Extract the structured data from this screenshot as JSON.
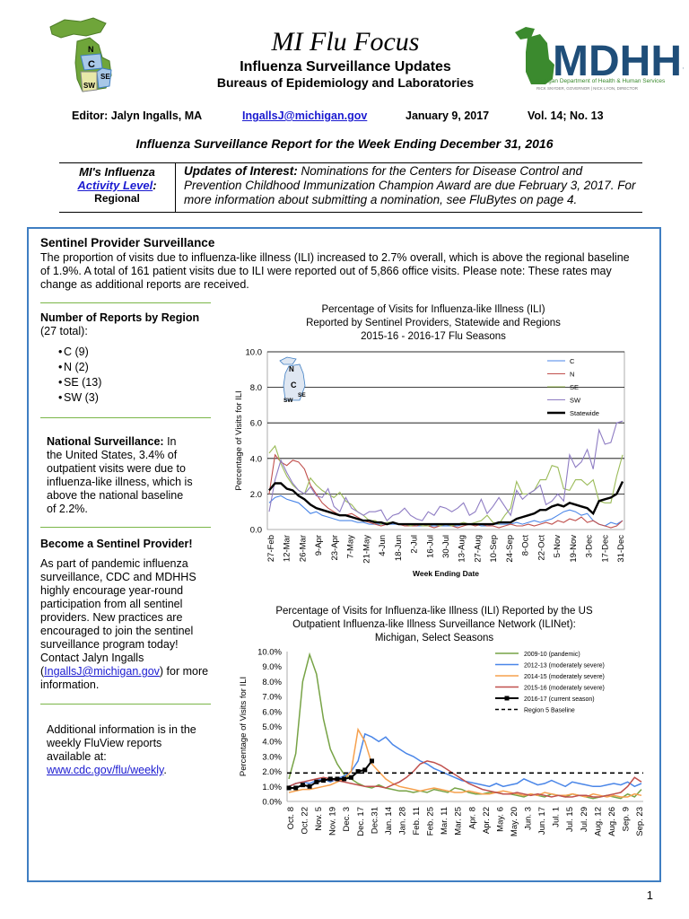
{
  "header": {
    "title": "MI Flu Focus",
    "subtitle": "Influenza Surveillance Updates",
    "bureau": "Bureaus of Epidemiology and Laboratories",
    "map_labels": [
      "N",
      "C",
      "SE",
      "SW"
    ],
    "logo": {
      "text": "MDHHS",
      "tagline": "Michigan Department of Health & Human Services",
      "governor_line": "RICK SNYDER, GOVERNOR | NICK LYON, DIRECTOR"
    }
  },
  "editor_row": {
    "editor": "Editor: Jalyn Ingalls, MA",
    "email": "IngallsJ@michigan.gov",
    "date": "January 9, 2017",
    "volume": "Vol. 14; No. 13"
  },
  "report_title": "Influenza Surveillance Report for the Week Ending December 31, 2016",
  "activity": {
    "label1": "MI's Influenza",
    "label2_link": "Activity Level",
    "label2_suffix": ":",
    "level": "Regional",
    "updates_label": "Updates of Interest:",
    "updates_text": " Nominations for the Centers for Disease Control and Prevention Childhood Immunization Champion Award are due February 3, 2017. For more information about submitting a nomination, see FluBytes on page 4."
  },
  "sentinel": {
    "title": "Sentinel Provider Surveillance",
    "paragraph": "The proportion of visits due to influenza-like illness (ILI) increased to 2.7% overall, which is above the regional baseline of 1.9%. A total of 161 patient visits due to ILI were reported out of 5,866 office visits. Please note: These rates may change as additional reports are received."
  },
  "reports_by_region": {
    "title": "Number of Reports by Region",
    "total": "(27 total):",
    "items": [
      "C (9)",
      "N (2)",
      "SE (13)",
      "SW (3)"
    ]
  },
  "national": {
    "label": "National Surveillance:",
    "text": " In the United States, 3.4% of outpatient visits were due to influenza-like illness, which is above the national baseline of 2.2%."
  },
  "become": {
    "title": "Become a Sentinel Provider!",
    "text_before": "As part of pandemic influenza surveillance, CDC and MDHHS highly encourage year-round participation from all sentinel providers. New practices are encouraged to join the sentinel surveillance program today! Contact Jalyn Ingalls (",
    "email": "IngallsJ@michigan.gov",
    "text_after": ") for more information."
  },
  "additional": {
    "text": "Additional information is in the weekly FluView reports available at:",
    "link": "www.cdc.gov/flu/weekly",
    "suffix": "."
  },
  "page_number": "1",
  "chart_data": [
    {
      "type": "line",
      "title": "Percentage of Visits for Influenza-like Illness (ILI) Reported by Sentinel Providers, Statewide and Regions 2015-16 - 2016-17 Flu Seasons",
      "title_lines": [
        "Percentage of Visits for Influenza-like Illness (ILI)",
        "Reported by Sentinel Providers, Statewide and Regions",
        "2015-16 - 2016-17 Flu Seasons"
      ],
      "xlabel": "Week Ending Date",
      "ylabel": "Percentage of Visits for ILI",
      "ylim": [
        0,
        10
      ],
      "y_ticks": [
        "0.0",
        "2.0",
        "4.0",
        "6.0",
        "8.0",
        "10.0"
      ],
      "x_tick_labels": [
        "27-Feb",
        "12-Mar",
        "26-Mar",
        "9-Apr",
        "23-Apr",
        "7-May",
        "21-May",
        "4-Jun",
        "18-Jun",
        "2-Jul",
        "16-Jul",
        "30-Jul",
        "13-Aug",
        "27-Aug",
        "10-Sep",
        "24-Sep",
        "8-Oct",
        "22-Oct",
        "5-Nov",
        "19-Nov",
        "3-Dec",
        "17-Dec",
        "31-Dec"
      ],
      "legend_position": "top-right",
      "series": [
        {
          "name": "C",
          "color": "#4a86e8",
          "values": [
            1.5,
            1.8,
            1.9,
            1.7,
            1.6,
            1.5,
            1.2,
            0.9,
            1.0,
            0.8,
            0.7,
            0.6,
            0.5,
            0.5,
            0.5,
            0.4,
            0.4,
            0.3,
            0.3,
            0.3,
            0.3,
            0.3,
            0.3,
            0.3,
            0.3,
            0.2,
            0.2,
            0.2,
            0.2,
            0.2,
            0.2,
            0.2,
            0.2,
            0.3,
            0.3,
            0.3,
            0.2,
            0.2,
            0.3,
            0.3,
            0.3,
            0.3,
            0.4,
            0.3,
            0.4,
            0.5,
            0.4,
            0.5,
            0.6,
            0.8,
            1.0,
            1.1,
            1.0,
            0.8,
            0.9,
            0.5,
            0.3,
            0.2,
            0.4,
            0.3,
            0.5
          ]
        },
        {
          "name": "N",
          "color": "#c0504d",
          "values": [
            2.0,
            4.2,
            3.8,
            3.6,
            3.9,
            3.8,
            3.4,
            2.5,
            2.0,
            1.5,
            1.2,
            1.0,
            0.8,
            0.8,
            0.9,
            0.7,
            0.5,
            0.4,
            0.3,
            0.2,
            0.3,
            0.4,
            0.3,
            0.2,
            0.2,
            0.2,
            0.3,
            0.2,
            0.1,
            0.2,
            0.3,
            0.2,
            0.1,
            0.2,
            0.3,
            0.2,
            0.3,
            0.2,
            0.2,
            0.1,
            0.2,
            0.3,
            0.2,
            0.2,
            0.3,
            0.2,
            0.3,
            0.4,
            0.3,
            0.5,
            0.4,
            0.6,
            0.5,
            0.7,
            0.4,
            0.5,
            0.3,
            0.2,
            0.1,
            0.2,
            0.5
          ]
        },
        {
          "name": "SE",
          "color": "#9bbb59",
          "values": [
            4.3,
            4.7,
            3.7,
            3.0,
            2.5,
            2.2,
            2.0,
            2.9,
            2.5,
            2.2,
            2.0,
            1.8,
            2.1,
            1.6,
            1.4,
            1.0,
            0.8,
            0.5,
            0.5,
            0.3,
            0.4,
            0.4,
            0.3,
            0.3,
            0.2,
            0.3,
            0.2,
            0.2,
            0.3,
            0.2,
            0.3,
            0.2,
            0.3,
            0.4,
            0.3,
            0.4,
            0.5,
            0.8,
            0.4,
            0.3,
            0.8,
            1.2,
            2.7,
            2.0,
            2.0,
            2.2,
            2.8,
            2.8,
            3.6,
            3.5,
            2.3,
            2.2,
            2.8,
            2.8,
            2.5,
            2.8,
            1.6,
            1.5,
            1.5,
            3.0,
            4.2
          ]
        },
        {
          "name": "SW",
          "color": "#8e7cc3",
          "values": [
            1.0,
            2.8,
            3.9,
            3.2,
            2.6,
            2.2,
            2.0,
            2.4,
            1.9,
            1.8,
            2.3,
            1.3,
            1.0,
            1.8,
            1.2,
            1.0,
            0.8,
            1.0,
            1.0,
            1.1,
            0.5,
            0.8,
            0.9,
            1.2,
            0.8,
            0.6,
            0.5,
            1.0,
            0.8,
            1.3,
            1.2,
            1.0,
            1.2,
            1.5,
            0.8,
            1.0,
            1.7,
            0.9,
            1.3,
            1.8,
            1.3,
            0.8,
            2.2,
            1.7,
            2.0,
            2.2,
            2.5,
            1.4,
            1.6,
            2.0,
            1.6,
            4.2,
            3.5,
            3.8,
            4.5,
            3.4,
            5.6,
            4.8,
            4.9,
            6.0,
            6.1
          ]
        },
        {
          "name": "Statewide",
          "color": "#000000",
          "values": [
            2.2,
            2.6,
            2.6,
            2.3,
            2.2,
            1.9,
            1.7,
            1.4,
            1.2,
            1.1,
            1.0,
            0.9,
            0.8,
            0.8,
            0.7,
            0.6,
            0.5,
            0.5,
            0.4,
            0.4,
            0.3,
            0.4,
            0.3,
            0.3,
            0.3,
            0.3,
            0.3,
            0.3,
            0.3,
            0.3,
            0.3,
            0.3,
            0.3,
            0.3,
            0.3,
            0.3,
            0.3,
            0.3,
            0.3,
            0.4,
            0.4,
            0.4,
            0.6,
            0.7,
            0.8,
            0.9,
            1.1,
            1.1,
            1.3,
            1.4,
            1.3,
            1.5,
            1.4,
            1.3,
            1.2,
            0.9,
            1.6,
            1.7,
            1.8,
            2.0,
            2.7
          ]
        }
      ]
    },
    {
      "type": "line",
      "title": "Percentage of Visits for Influenza-like Illness (ILI) Reported by the US Outpatient Influenza-like Illness Surveillance Network (ILINet): Michigan, Select Seasons",
      "title_lines": [
        "Percentage of Visits for Influenza-like Illness (ILI) Reported by the US",
        "Outpatient Influenza-like Illness Surveillance Network (ILINet):",
        "Michigan, Select Seasons"
      ],
      "ylabel": "Percentage of Visits for ILI",
      "ylim": [
        0,
        10
      ],
      "y_ticks": [
        "0.0%",
        "1.0%",
        "2.0%",
        "3.0%",
        "4.0%",
        "5.0%",
        "6.0%",
        "7.0%",
        "8.0%",
        "9.0%",
        "10.0%"
      ],
      "x_tick_labels": [
        "Oct. 8",
        "Oct. 22",
        "Nov. 5",
        "Nov. 19",
        "Dec. 3",
        "Dec. 17",
        "Dec.31",
        "Jan. 14",
        "Jan. 28",
        "Feb. 11",
        "Feb. 25",
        "Mar. 11",
        "Mar. 25",
        "Apr. 8",
        "Apr. 22",
        "May. 6",
        "May. 20",
        "Jun. 3",
        "Jun. 17",
        "Jul. 1",
        "Jul. 15",
        "Jul. 29",
        "Aug. 12",
        "Aug. 26",
        "Sep. 9",
        "Sep. 23"
      ],
      "legend_position": "top-right",
      "series": [
        {
          "name": "2009-10 (pandemic)",
          "color": "#77a346",
          "values": [
            1.5,
            3.2,
            8.0,
            9.8,
            8.5,
            5.5,
            3.5,
            2.5,
            1.8,
            1.5,
            1.2,
            1.0,
            0.9,
            1.1,
            0.9,
            0.8,
            0.7,
            0.7,
            0.6,
            0.7,
            0.6,
            0.8,
            0.7,
            0.6,
            0.9,
            0.8,
            0.6,
            0.5,
            0.5,
            0.6,
            0.6,
            0.5,
            0.5,
            0.4,
            0.3,
            0.5,
            0.4,
            0.3,
            0.5,
            0.4,
            0.3,
            0.5,
            0.4,
            0.3,
            0.2,
            0.3,
            0.4,
            0.3,
            0.2,
            0.5,
            0.3,
            0.8
          ]
        },
        {
          "name": "2012-13 (moderately severe)",
          "color": "#4a86e8",
          "values": [
            1.0,
            1.2,
            1.3,
            1.2,
            1.4,
            1.5,
            1.3,
            1.5,
            1.7,
            2.0,
            2.7,
            4.5,
            4.3,
            4.0,
            4.3,
            3.8,
            3.5,
            3.2,
            3.0,
            2.7,
            2.5,
            2.2,
            2.0,
            1.8,
            1.6,
            1.4,
            1.3,
            1.2,
            1.1,
            1.0,
            1.2,
            1.0,
            1.1,
            1.2,
            1.5,
            1.3,
            1.1,
            1.2,
            1.4,
            1.2,
            1.0,
            1.3,
            1.2,
            1.1,
            1.0,
            1.0,
            1.1,
            1.2,
            1.1,
            1.3,
            1.0,
            1.2
          ]
        },
        {
          "name": "2014-15 (moderately severe)",
          "color": "#f6a04d",
          "values": [
            0.6,
            0.7,
            0.8,
            0.8,
            0.9,
            1.0,
            1.1,
            1.3,
            1.5,
            2.0,
            4.8,
            4.0,
            2.5,
            2.0,
            1.5,
            1.2,
            1.0,
            0.9,
            0.8,
            0.7,
            0.8,
            0.9,
            0.8,
            0.7,
            0.6,
            0.6,
            0.7,
            0.6,
            0.5,
            0.5,
            0.6,
            0.7,
            0.6,
            0.5,
            0.4,
            0.5,
            0.4,
            0.6,
            0.5,
            0.4,
            0.4,
            0.5,
            0.4,
            0.3,
            0.5,
            0.4,
            0.3,
            0.4,
            0.3,
            0.3,
            0.5,
            0.4
          ]
        },
        {
          "name": "2015-16 (moderately severe)",
          "color": "#c0504d",
          "values": [
            1.0,
            1.2,
            1.3,
            1.4,
            1.5,
            1.6,
            1.5,
            1.4,
            1.3,
            1.2,
            1.1,
            1.0,
            1.0,
            1.0,
            0.9,
            1.1,
            1.3,
            1.6,
            2.0,
            2.5,
            2.7,
            2.6,
            2.4,
            2.1,
            1.8,
            1.5,
            1.2,
            1.0,
            0.8,
            0.7,
            0.6,
            0.5,
            0.5,
            0.6,
            0.5,
            0.4,
            0.5,
            0.4,
            0.3,
            0.4,
            0.3,
            0.3,
            0.4,
            0.4,
            0.3,
            0.3,
            0.4,
            0.5,
            0.6,
            1.0,
            1.6,
            1.3
          ]
        },
        {
          "name": "2016-17 (current season)",
          "color": "#000000",
          "marker": "square",
          "values": [
            0.9,
            0.9,
            1.1,
            1.0,
            1.3,
            1.4,
            1.5,
            1.5,
            1.5,
            1.6,
            2.0,
            2.1,
            2.7
          ]
        },
        {
          "name": "Region 5 Baseline",
          "color": "#000000",
          "dashed": true,
          "constant": 1.9
        }
      ]
    }
  ]
}
